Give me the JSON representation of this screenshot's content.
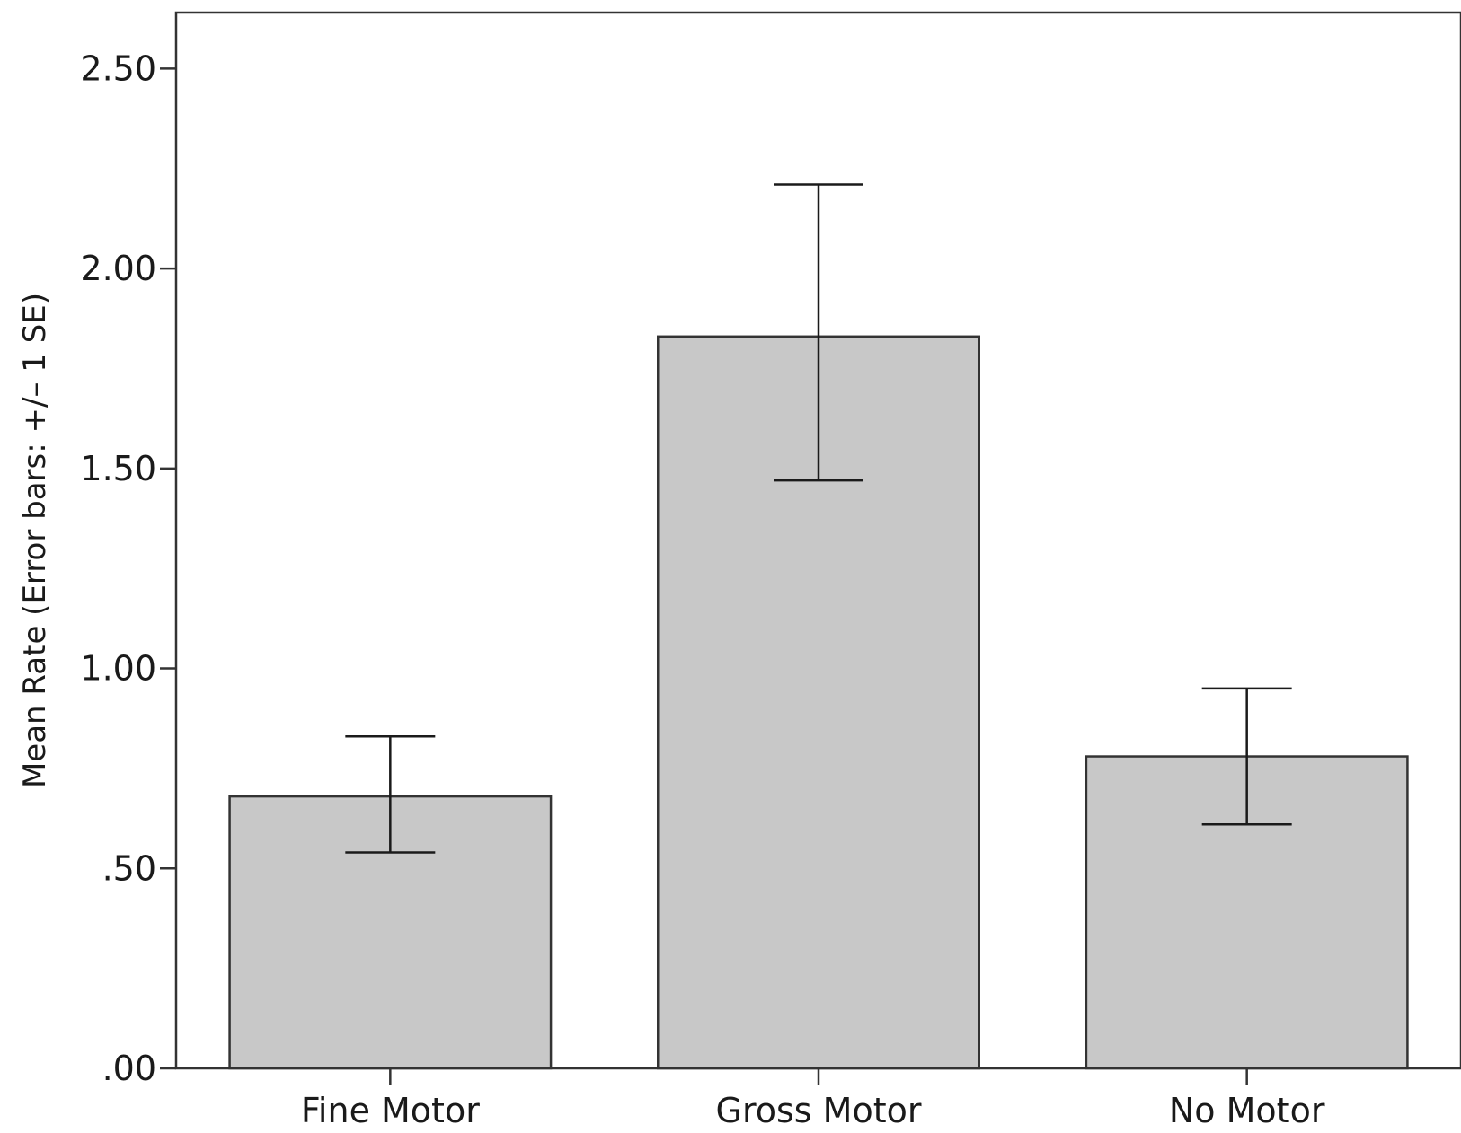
{
  "chart_data": {
    "type": "bar",
    "categories": [
      "Fine Motor",
      "Gross Motor",
      "No Motor"
    ],
    "values": [
      0.68,
      1.83,
      0.78
    ],
    "error_low": [
      0.54,
      1.47,
      0.61
    ],
    "error_high": [
      0.83,
      2.21,
      0.95
    ],
    "xlabel": "",
    "ylabel": "Mean Rate (Error bars: +/– 1 SE)",
    "ylim": [
      0,
      2.64
    ],
    "yticks": [
      0,
      0.5,
      1.0,
      1.5,
      2.0,
      2.5
    ],
    "ytick_labels": [
      ".00",
      ".50",
      "1.00",
      "1.50",
      "2.00",
      "2.50"
    ],
    "grid": false,
    "legend": "none",
    "bar_color": "#c8c8c8",
    "edge_color": "#333333"
  }
}
